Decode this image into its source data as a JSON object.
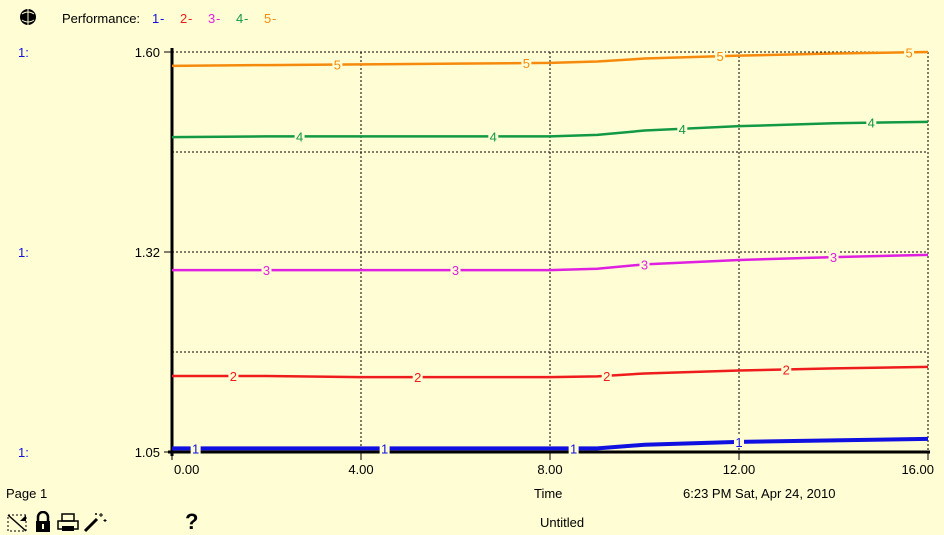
{
  "chart_data": {
    "type": "line",
    "legend": {
      "title": "Performance:",
      "items": [
        {
          "num": "1",
          "color": "#1010e0"
        },
        {
          "num": "2",
          "color": "#ee1c1c"
        },
        {
          "num": "3",
          "color": "#e020e0"
        },
        {
          "num": "4",
          "color": "#119944"
        },
        {
          "num": "5",
          "color": "#f58a0c"
        }
      ],
      "separator": " - "
    },
    "xlabel": "Time",
    "xlim": [
      0,
      16
    ],
    "xticks": [
      0,
      4,
      8,
      12,
      16
    ],
    "xtick_labels": [
      "0.00",
      "4.00",
      "8.00",
      "12.00",
      "16.00"
    ],
    "ylim": [
      1.05,
      1.6
    ],
    "ytick_labels": [
      {
        "value": 1.6,
        "label": "1.60"
      },
      {
        "value": 1.325,
        "label": "1.32"
      },
      {
        "value": 1.05,
        "label": "1.05"
      }
    ],
    "axis_prefix": "1:",
    "grid": true,
    "series": [
      {
        "name": "1",
        "color": "#1010e0",
        "x": [
          0,
          2,
          4,
          6,
          8,
          9,
          10,
          12,
          14,
          16
        ],
        "y": [
          1.055,
          1.055,
          1.055,
          1.055,
          1.055,
          1.055,
          1.06,
          1.064,
          1.066,
          1.068
        ]
      },
      {
        "name": "2",
        "color": "#ee1c1c",
        "x": [
          0,
          2,
          4,
          6,
          8,
          9,
          10,
          12,
          14,
          16
        ],
        "y": [
          1.1545,
          1.1545,
          1.153,
          1.153,
          1.153,
          1.154,
          1.158,
          1.162,
          1.165,
          1.167
        ]
      },
      {
        "name": "3",
        "color": "#e020e0",
        "x": [
          0,
          2,
          4,
          6,
          8,
          9,
          10,
          12,
          14,
          16
        ],
        "y": [
          1.3,
          1.3,
          1.3,
          1.3,
          1.3,
          1.302,
          1.308,
          1.314,
          1.318,
          1.321
        ]
      },
      {
        "name": "4",
        "color": "#119944",
        "x": [
          0,
          2,
          4,
          6,
          8,
          9,
          10,
          12,
          14,
          16
        ],
        "y": [
          1.483,
          1.484,
          1.484,
          1.484,
          1.484,
          1.486,
          1.492,
          1.498,
          1.502,
          1.504
        ]
      },
      {
        "name": "5",
        "color": "#f58a0c",
        "x": [
          0,
          2,
          4,
          6,
          8,
          9,
          10,
          12,
          14,
          16
        ],
        "y": [
          1.581,
          1.582,
          1.583,
          1.584,
          1.585,
          1.587,
          1.591,
          1.595,
          1.598,
          1.6
        ]
      }
    ],
    "series_label_x": [
      [
        0.5,
        4.5,
        8.5,
        12.0
      ],
      [
        1.3,
        5.2,
        9.2,
        13.0
      ],
      [
        2.0,
        6.0,
        10.0,
        14.0
      ],
      [
        2.7,
        6.8,
        10.8,
        14.8
      ],
      [
        3.5,
        7.5,
        11.6,
        15.6
      ]
    ]
  },
  "status": {
    "page": "Page 1",
    "time_label": "Time",
    "timestamp": "6:23 PM   Sat, Apr 24, 2010",
    "document": "Untitled",
    "help": "?"
  },
  "toolbar": {
    "icons": [
      "graph-pad-icon",
      "lock-icon",
      "print-icon",
      "magic-wand-icon"
    ]
  }
}
